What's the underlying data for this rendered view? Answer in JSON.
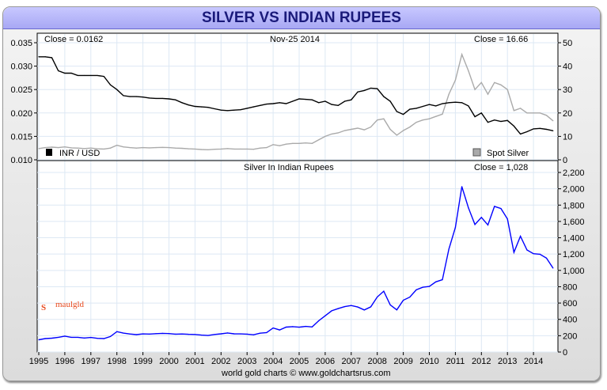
{
  "chart_data": [
    {
      "type": "line",
      "panel": "top",
      "title": "Nov-25  2014",
      "left_close": "Close = 0.0162",
      "right_close": "Close = 16.66",
      "left_axis": {
        "ylim": [
          0.01,
          0.035
        ],
        "ticks": [
          "0.010",
          "0.015",
          "0.020",
          "0.025",
          "0.030",
          "0.035"
        ]
      },
      "right_axis": {
        "ylim": [
          0,
          50
        ],
        "ticks": [
          "0",
          "10",
          "20",
          "30",
          "40",
          "50"
        ]
      },
      "legend": [
        {
          "label": "INR / USD",
          "color": "#000000",
          "position": "bottom-left"
        },
        {
          "label": "Spot Silver",
          "color": "#aaaaaa",
          "position": "bottom-right"
        }
      ],
      "x_start": 1995.0,
      "x_step": 0.25,
      "series": [
        {
          "name": "INR / USD",
          "axis": "left",
          "color": "#000000",
          "values": [
            0.032,
            0.032,
            0.0318,
            0.029,
            0.0285,
            0.0285,
            0.028,
            0.028,
            0.028,
            0.028,
            0.0278,
            0.026,
            0.025,
            0.0237,
            0.0235,
            0.0235,
            0.0234,
            0.0232,
            0.0231,
            0.0231,
            0.023,
            0.0228,
            0.0222,
            0.0217,
            0.0214,
            0.0213,
            0.0212,
            0.0209,
            0.0206,
            0.0205,
            0.0206,
            0.0207,
            0.021,
            0.0213,
            0.0216,
            0.0219,
            0.022,
            0.0222,
            0.022,
            0.0225,
            0.023,
            0.0229,
            0.0228,
            0.0222,
            0.0225,
            0.0218,
            0.0216,
            0.0225,
            0.0228,
            0.0245,
            0.0248,
            0.0253,
            0.0252,
            0.0235,
            0.0225,
            0.0203,
            0.0197,
            0.0208,
            0.021,
            0.0214,
            0.0218,
            0.0215,
            0.022,
            0.0222,
            0.0223,
            0.0222,
            0.0215,
            0.0192,
            0.02,
            0.018,
            0.0185,
            0.0182,
            0.0184,
            0.0172,
            0.0155,
            0.016,
            0.0166,
            0.0167,
            0.0165,
            0.0162
          ]
        },
        {
          "name": "Spot Silver",
          "axis": "right",
          "color": "#aaaaaa",
          "values": [
            4.8,
            5.2,
            5.4,
            5.2,
            5.5,
            5.1,
            5.0,
            4.8,
            5.0,
            4.7,
            4.6,
            5.0,
            6.2,
            5.5,
            5.2,
            5.0,
            5.2,
            5.1,
            5.2,
            5.3,
            5.2,
            5.0,
            4.9,
            4.7,
            4.6,
            4.4,
            4.3,
            4.5,
            4.6,
            4.8,
            4.6,
            4.6,
            4.6,
            4.5,
            5.0,
            5.2,
            6.5,
            6.0,
            6.7,
            7.0,
            7.0,
            7.2,
            7.0,
            8.5,
            10,
            11,
            11.5,
            12.5,
            13,
            13.5,
            12.8,
            14,
            17,
            17.5,
            13,
            10.5,
            12.5,
            14,
            16,
            17,
            17.5,
            18.5,
            19.5,
            28,
            34,
            45,
            38,
            30,
            33,
            28,
            33,
            32,
            30,
            21,
            22,
            20,
            20,
            20,
            19,
            16.66
          ]
        }
      ]
    },
    {
      "type": "line",
      "panel": "bottom",
      "title": "Silver In Indian Rupees",
      "close": "Close = 1,028",
      "ylim": [
        0,
        2200
      ],
      "yticks": [
        "0",
        "200",
        "400",
        "600",
        "800",
        "1,000",
        "1,200",
        "1,400",
        "1,600",
        "1,800",
        "2,000",
        "2,200"
      ],
      "xticks": [
        "1995",
        "1996",
        "1997",
        "1998",
        "1999",
        "2000",
        "2001",
        "2002",
        "2003",
        "2004",
        "2005",
        "2006",
        "2007",
        "2008",
        "2009",
        "2010",
        "2011",
        "2012",
        "2013",
        "2014"
      ],
      "x_start": 1995.0,
      "x_step": 0.25,
      "series": [
        {
          "name": "Silver In Indian Rupees",
          "color": "#0000ff",
          "values": [
            150,
            165,
            170,
            180,
            195,
            180,
            180,
            172,
            178,
            168,
            165,
            190,
            250,
            232,
            221,
            213,
            222,
            220,
            225,
            229,
            226,
            219,
            221,
            217,
            215,
            207,
            203,
            215,
            223,
            234,
            223,
            222,
            219,
            211,
            231,
            237,
            295,
            270,
            305,
            311,
            304,
            314,
            307,
            383,
            444,
            505,
            532,
            556,
            570,
            551,
            516,
            553,
            675,
            745,
            578,
            517,
            635,
            673,
            762,
            794,
            803,
            860,
            886,
            1261,
            1525,
            2027,
            1767,
            1562,
            1650,
            1556,
            1784,
            1758,
            1630,
            1221,
            1419,
            1250,
            1205,
            1198,
            1150,
            1028
          ]
        }
      ]
    }
  ],
  "header": {
    "title": "SILVER VS INDIAN RUPEES"
  },
  "footer": "world gold charts © www.goldchartsrus.com",
  "logo": "Smaulgld"
}
